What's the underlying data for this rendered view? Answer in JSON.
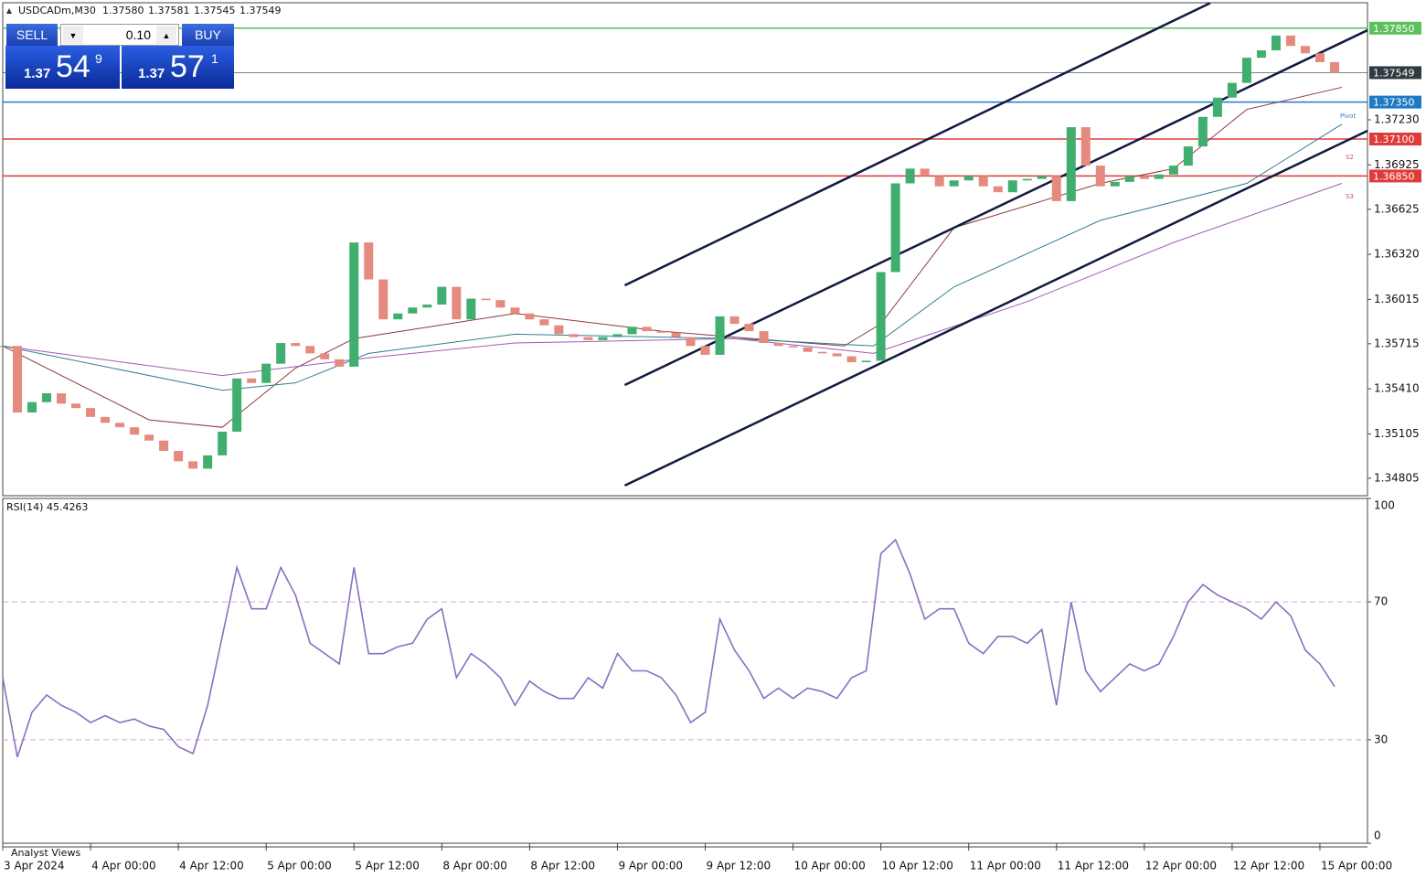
{
  "header": {
    "symbol": "USDCADm,M30",
    "ohlc": [
      "1.37580",
      "1.37581",
      "1.37545",
      "1.37549"
    ]
  },
  "trade_panel": {
    "sell": "SELL",
    "buy": "BUY",
    "lot": "0.10",
    "bid": {
      "big": "1.37",
      "main": "54",
      "sup": "9"
    },
    "ask": {
      "big": "1.37",
      "main": "57",
      "sup": "1"
    }
  },
  "footer": "Analyst Views",
  "chart_data": [
    {
      "type": "candlestick",
      "up_color": "#3fae6e",
      "down_color": "#e58a7e",
      "x": [
        0,
        4,
        8,
        12,
        16,
        20,
        24,
        28,
        32,
        36,
        40,
        44,
        48,
        52,
        56,
        60,
        64,
        68,
        72,
        76,
        80,
        84,
        88,
        92,
        96,
        100,
        104,
        108,
        112,
        116,
        120,
        124,
        128,
        132,
        136,
        140,
        144,
        148,
        152,
        156,
        160,
        164,
        168,
        172,
        176,
        180,
        184,
        188,
        192,
        196,
        200,
        204,
        208,
        212,
        216,
        220,
        224,
        228,
        232,
        236,
        240,
        244,
        248,
        252,
        256,
        260,
        264,
        268,
        272,
        276,
        280,
        284,
        288,
        292,
        296,
        300,
        304,
        308,
        312,
        316,
        320,
        324,
        328,
        332,
        336,
        340,
        344,
        348,
        352,
        356,
        360,
        364
      ],
      "values": [
        1.357,
        1.3525,
        1.3532,
        1.3538,
        1.3531,
        1.3528,
        1.3522,
        1.3518,
        1.3515,
        1.351,
        1.3506,
        1.3499,
        1.3492,
        1.3487,
        1.3496,
        1.3512,
        1.3548,
        1.3545,
        1.3558,
        1.3572,
        1.357,
        1.3565,
        1.3561,
        1.3556,
        1.364,
        1.3615,
        1.3588,
        1.3592,
        1.3596,
        1.3598,
        1.361,
        1.3588,
        1.3602,
        1.3601,
        1.3596,
        1.3592,
        1.3588,
        1.3584,
        1.3578,
        1.3576,
        1.3574,
        1.3576,
        1.3578,
        1.3583,
        1.358,
        1.3579,
        1.3576,
        1.357,
        1.3564,
        1.359,
        1.3585,
        1.358,
        1.3572,
        1.357,
        1.3569,
        1.3566,
        1.3565,
        1.3563,
        1.3559,
        1.356,
        1.362,
        1.368,
        1.369,
        1.3685,
        1.3678,
        1.3682,
        1.3685,
        1.3678,
        1.3674,
        1.3682,
        1.3683,
        1.3685,
        1.3668,
        1.3718,
        1.3692,
        1.3678,
        1.3681,
        1.3685,
        1.3683,
        1.3686,
        1.3692,
        1.3705,
        1.3725,
        1.3738,
        1.3748,
        1.3765,
        1.377,
        1.378,
        1.3773,
        1.3768,
        1.3762,
        1.37549
      ],
      "moving_averages": [
        {
          "color": "#8b3a3a",
          "x": [
            0,
            40,
            60,
            80,
            96,
            140,
            180,
            230,
            240,
            260,
            300,
            320,
            340,
            366
          ],
          "values": [
            1.357,
            1.352,
            1.3515,
            1.3555,
            1.3575,
            1.3592,
            1.358,
            1.357,
            1.3585,
            1.365,
            1.368,
            1.369,
            1.373,
            1.3745
          ]
        },
        {
          "color": "#2f7f8f",
          "x": [
            0,
            60,
            80,
            100,
            140,
            200,
            238,
            260,
            300,
            340,
            366
          ],
          "values": [
            1.357,
            1.354,
            1.3545,
            1.3565,
            1.3578,
            1.3575,
            1.357,
            1.361,
            1.3655,
            1.368,
            1.372
          ]
        },
        {
          "color": "#a05ab8",
          "x": [
            0,
            60,
            100,
            140,
            200,
            238,
            280,
            320,
            366
          ],
          "values": [
            1.357,
            1.355,
            1.3562,
            1.3572,
            1.3575,
            1.3565,
            1.36,
            1.364,
            1.368
          ]
        }
      ],
      "trendlines": [
        {
          "color": "#111a40",
          "x": [
            170,
            330
          ],
          "values": [
            1.3611,
            1.3802
          ]
        },
        {
          "color": "#111a40",
          "x": [
            170,
            373
          ],
          "values": [
            1.35436,
            1.37836
          ]
        },
        {
          "color": "#111a40",
          "x": [
            170,
            373
          ],
          "values": [
            1.34756,
            1.37156
          ]
        }
      ],
      "levels": [
        {
          "value": 1.3785,
          "value_label": "1.37850",
          "color": "#5cc05c"
        },
        {
          "value": 1.37549,
          "value_label": "1.37549",
          "color": "#2e3b40"
        },
        {
          "value": 1.3735,
          "value_label": "1.37350",
          "color": "#1f7ac4"
        },
        {
          "value": 1.371,
          "value_label": "1.37100",
          "color": "#e03b3b"
        },
        {
          "value": 1.3685,
          "value_label": "1.36850",
          "color": "#e03b3b"
        }
      ],
      "annotations": [
        "Pivot",
        "S2",
        "S3"
      ],
      "xlim": [
        0,
        373
      ],
      "ylim": [
        1.34687,
        1.38022
      ],
      "yticks": [
        {
          "value": 1.3723,
          "label": "1.37230"
        },
        1.36925,
        1.36625,
        {
          "value": 1.3632,
          "label": "1.36320"
        },
        1.36015,
        1.35715,
        {
          "value": 1.3541,
          "label": "1.35410"
        },
        1.35105,
        1.34805
      ],
      "xticks": [
        {
          "value": 0,
          "label": "3 Apr 2024"
        },
        {
          "value": 24,
          "label": "4 Apr 00:00"
        },
        {
          "value": 48,
          "label": "4 Apr 12:00"
        },
        {
          "value": 72,
          "label": "5 Apr 00:00"
        },
        {
          "value": 96,
          "label": "5 Apr 12:00"
        },
        {
          "value": 120,
          "label": "8 Apr 00:00"
        },
        {
          "value": 144,
          "label": "8 Apr 12:00"
        },
        {
          "value": 168,
          "label": "9 Apr 00:00"
        },
        {
          "value": 192,
          "label": "9 Apr 12:00"
        },
        {
          "value": 216,
          "label": "10 Apr 00:00"
        },
        {
          "value": 240,
          "label": "10 Apr 12:00"
        },
        {
          "value": 264,
          "label": "11 Apr 00:00"
        },
        {
          "value": 288,
          "label": "11 Apr 12:00"
        },
        {
          "value": 312,
          "label": "12 Apr 00:00"
        },
        {
          "value": 336,
          "label": "12 Apr 12:00"
        },
        {
          "value": 360,
          "label": "15 Apr 00:00"
        }
      ]
    },
    {
      "type": "line",
      "title": "RSI(14) 45.4263",
      "color": "#8a6fc0",
      "level_color": "#d9a8d9",
      "x": [
        0,
        4,
        8,
        12,
        16,
        20,
        24,
        28,
        32,
        36,
        40,
        44,
        48,
        52,
        56,
        60,
        64,
        68,
        72,
        76,
        80,
        84,
        88,
        92,
        96,
        100,
        104,
        108,
        112,
        116,
        120,
        124,
        128,
        132,
        136,
        140,
        144,
        148,
        152,
        156,
        160,
        164,
        168,
        172,
        176,
        180,
        184,
        188,
        192,
        196,
        200,
        204,
        208,
        212,
        216,
        220,
        224,
        228,
        232,
        236,
        240,
        244,
        248,
        252,
        256,
        260,
        264,
        268,
        272,
        276,
        280,
        284,
        288,
        292,
        296,
        300,
        304,
        308,
        312,
        316,
        320,
        324,
        328,
        332,
        336,
        340,
        344,
        348,
        352,
        356,
        360,
        364
      ],
      "values": [
        48,
        25,
        38,
        43,
        40,
        38,
        35,
        37,
        35,
        36,
        34,
        33,
        28,
        26,
        40,
        60,
        80,
        68,
        68,
        80,
        72,
        58,
        55,
        52,
        80,
        55,
        55,
        57,
        58,
        65,
        68,
        48,
        55,
        52,
        48,
        40,
        47,
        44,
        42,
        42,
        48,
        45,
        55,
        50,
        50,
        48,
        43,
        35,
        38,
        65,
        56,
        50,
        42,
        45,
        42,
        45,
        44,
        42,
        48,
        50,
        84,
        88,
        78,
        65,
        68,
        68,
        58,
        55,
        60,
        60,
        58,
        62,
        40,
        70,
        50,
        44,
        48,
        52,
        50,
        52,
        60,
        70,
        75,
        72,
        70,
        68,
        65,
        70,
        66,
        56,
        52,
        45.4263
      ],
      "xlim": [
        0,
        373
      ],
      "ylim": [
        0,
        100
      ],
      "yticks": [
        0,
        30,
        70,
        100
      ]
    }
  ]
}
